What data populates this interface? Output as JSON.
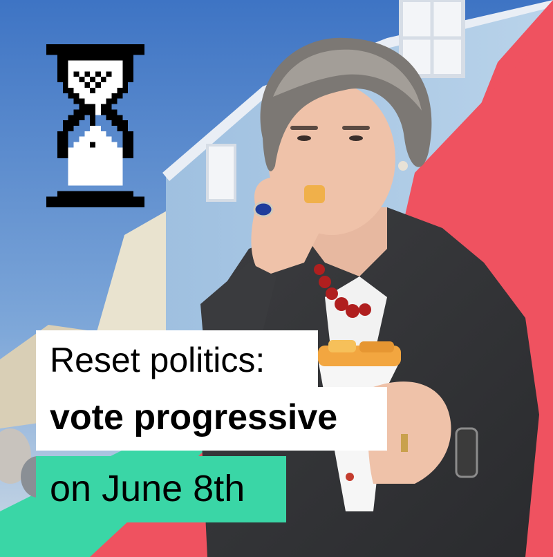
{
  "background_colors": {
    "sky": "#4d82c9",
    "accent_red": "#ef5260",
    "accent_green": "#3ad6a6"
  },
  "photo": {
    "icon": "photo-of-woman-eating-chips",
    "subject": "Woman with short grey hair eating chips from a paper cone"
  },
  "hourglass": {
    "icon": "hourglass-pixel-icon"
  },
  "caption": {
    "line1": "Reset politics:",
    "line2": "vote progressive",
    "line3": "on June 8th"
  }
}
